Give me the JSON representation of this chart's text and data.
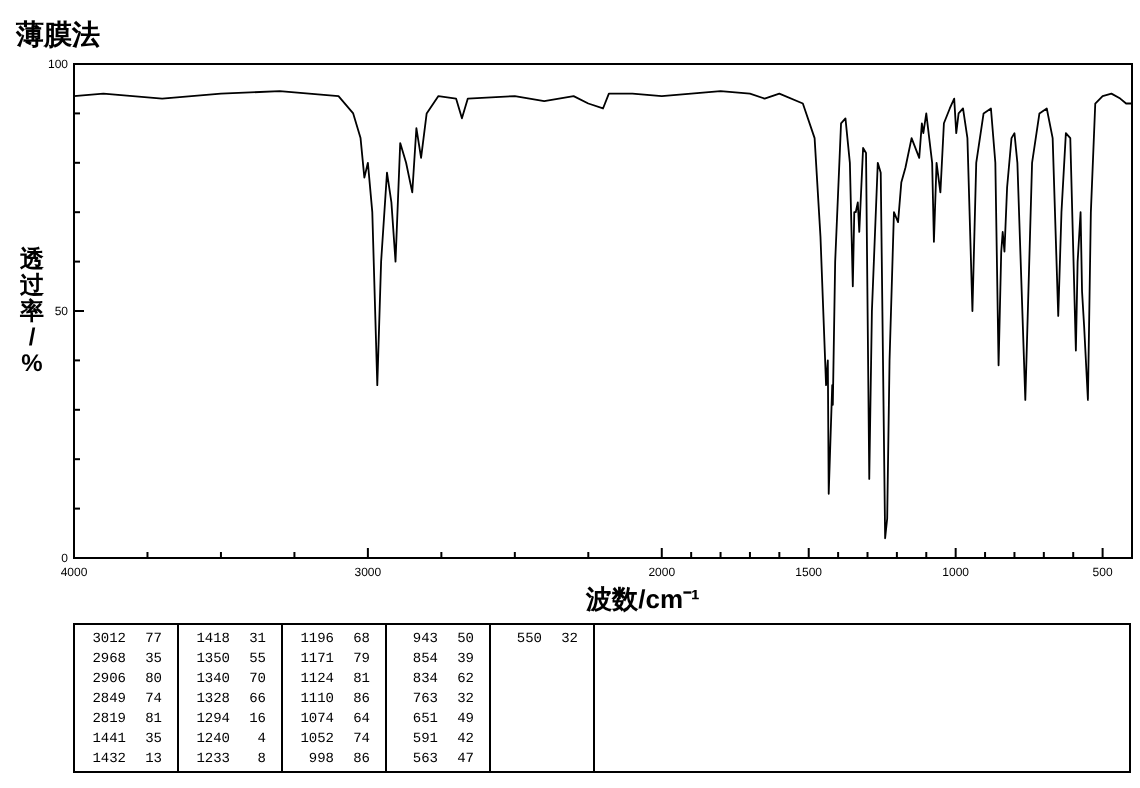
{
  "chart_data": {
    "type": "line",
    "title": "薄膜法",
    "xlabel": "波数/cm⁻¹",
    "ylabel": "透过率/%",
    "xlim": [
      4000,
      400
    ],
    "ylim": [
      0,
      100
    ],
    "xticks": [
      4000,
      {
        "value": 3750,
        "label": null
      },
      {
        "value": 3500,
        "label": null
      },
      {
        "value": 3250,
        "label": null
      },
      3000,
      {
        "value": 2750,
        "label": null
      },
      {
        "value": 2500,
        "label": null
      },
      {
        "value": 2250,
        "label": null
      },
      2000,
      {
        "value": 1900,
        "label": null
      },
      {
        "value": 1800,
        "label": null
      },
      {
        "value": 1700,
        "label": null
      },
      {
        "value": 1600,
        "label": null
      },
      1500,
      {
        "value": 1400,
        "label": null
      },
      {
        "value": 1300,
        "label": null
      },
      {
        "value": 1200,
        "label": null
      },
      {
        "value": 1100,
        "label": null
      },
      1000,
      {
        "value": 900,
        "label": null
      },
      {
        "value": 800,
        "label": null
      },
      {
        "value": 700,
        "label": null
      },
      {
        "value": 600,
        "label": null
      },
      500
    ],
    "yticks": [
      0,
      {
        "value": 10,
        "label": null
      },
      {
        "value": 20,
        "label": null
      },
      {
        "value": 30,
        "label": null
      },
      {
        "value": 40,
        "label": null
      },
      50,
      {
        "value": 60,
        "label": null
      },
      {
        "value": 70,
        "label": null
      },
      {
        "value": 80,
        "label": null
      },
      {
        "value": 90,
        "label": null
      },
      100
    ],
    "grid": false,
    "line_style": "solid",
    "x": [
      4000,
      3900,
      3700,
      3500,
      3300,
      3100,
      3050,
      3025,
      3012,
      3000,
      2985,
      2968,
      2955,
      2935,
      2920,
      2906,
      2890,
      2870,
      2849,
      2835,
      2819,
      2800,
      2760,
      2700,
      2680,
      2660,
      2500,
      2400,
      2300,
      2250,
      2200,
      2180,
      2100,
      2000,
      1900,
      1800,
      1700,
      1650,
      1600,
      1520,
      1480,
      1460,
      1441,
      1435,
      1432,
      1420,
      1418,
      1410,
      1390,
      1375,
      1360,
      1350,
      1345,
      1340,
      1333,
      1328,
      1315,
      1305,
      1294,
      1285,
      1265,
      1255,
      1240,
      1233,
      1225,
      1210,
      1196,
      1185,
      1171,
      1150,
      1124,
      1115,
      1110,
      1100,
      1080,
      1074,
      1065,
      1052,
      1040,
      1020,
      1005,
      998,
      990,
      975,
      960,
      943,
      930,
      905,
      880,
      865,
      854,
      845,
      840,
      834,
      825,
      810,
      800,
      790,
      763,
      740,
      715,
      690,
      670,
      651,
      640,
      625,
      610,
      591,
      585,
      575,
      570,
      563,
      550,
      540,
      525,
      500,
      470,
      440,
      420,
      400
    ],
    "series": [
      {
        "color": "#000000",
        "values": [
          93.5,
          94,
          93,
          94,
          94.5,
          93.5,
          90,
          85,
          77,
          80,
          70,
          35,
          60,
          78,
          72,
          60,
          84,
          80,
          74,
          87,
          81,
          90,
          93.5,
          93,
          89,
          93,
          93.5,
          92.5,
          93.5,
          92,
          91,
          94,
          94,
          93.5,
          94,
          94.5,
          94,
          93,
          94,
          92,
          85,
          65,
          35,
          40,
          13,
          35,
          31,
          60,
          88,
          89,
          80,
          55,
          70,
          70,
          72,
          66,
          83,
          82,
          16,
          50,
          80,
          78,
          4,
          8,
          40,
          70,
          68,
          76,
          79,
          85,
          81,
          88,
          86,
          90,
          80,
          64,
          80,
          74,
          88,
          91,
          93,
          86,
          90,
          91,
          85,
          50,
          80,
          90,
          91,
          80,
          39,
          62,
          66,
          62,
          75,
          85,
          86,
          80,
          32,
          80,
          90,
          91,
          85,
          49,
          70,
          86,
          85,
          42,
          60,
          70,
          54,
          47,
          32,
          70,
          92,
          93.5,
          94,
          93,
          92,
          92
        ]
      }
    ],
    "annotations": [
      "3012 77",
      "2968 35",
      "2906 80",
      "2849 74",
      "2819 81",
      "1441 35",
      "1432 13",
      "1418 31",
      "1350 55",
      "1340 70",
      "1328 66",
      "1294 16",
      "1240 4",
      "1233 8",
      "1196 68",
      "1171 79",
      "1124 81",
      "1110 86",
      "1074 64",
      "1052 74",
      "998 86",
      "943 50",
      "854 39",
      "834 62",
      "763 32",
      "651 49",
      "591 42",
      "563 47",
      "550 32"
    ]
  }
}
